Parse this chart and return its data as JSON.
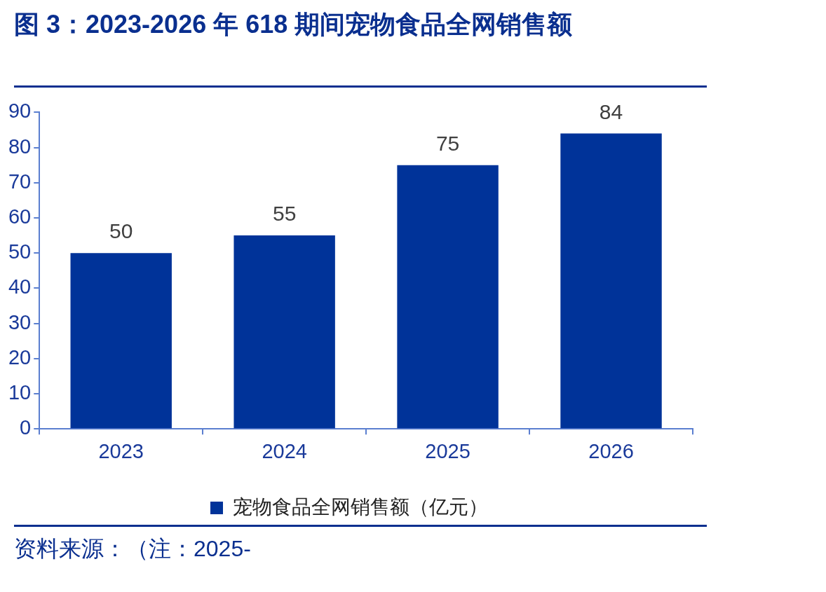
{
  "chart_data": {
    "type": "bar",
    "title": "图 3：2023-2026 年 618 期间宠物食品全网销售额",
    "categories": [
      "2023",
      "2024",
      "2025",
      "2026"
    ],
    "series": [
      {
        "name": "宠物食品全网销售额（亿元）",
        "color": "#003399",
        "values": [
          50,
          55,
          75,
          84
        ]
      }
    ],
    "ylim": [
      0,
      90
    ],
    "yticks": [
      0,
      10,
      20,
      30,
      40,
      50,
      60,
      70,
      80,
      90
    ],
    "grid": false,
    "legend": "bottom",
    "data_labels": true,
    "annotations": [
      "资料来源：（注：2025-"
    ]
  }
}
